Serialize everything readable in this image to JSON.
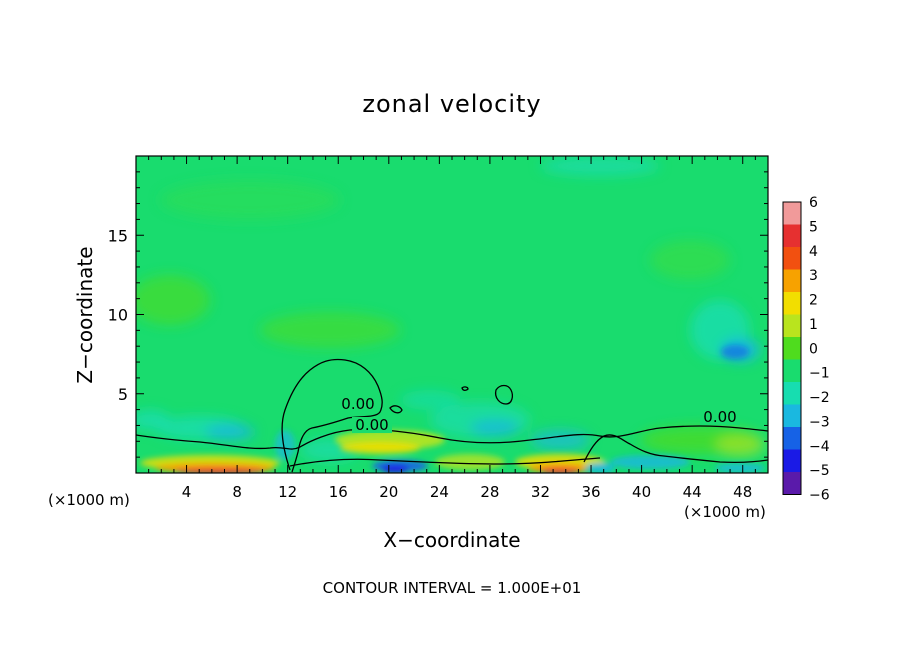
{
  "chart_data": {
    "type": "heatmap",
    "title": "zonal velocity",
    "xlabel": "X−coordinate",
    "ylabel": "Z−coordinate",
    "x_unit_left": "(×1000 m)",
    "x_unit_right": "(×1000 m)",
    "footer": "CONTOUR INTERVAL = 1.000E+01",
    "xlim": [
      0,
      50
    ],
    "ylim": [
      0,
      20
    ],
    "x_ticks": [
      4,
      8,
      12,
      16,
      20,
      24,
      28,
      32,
      36,
      40,
      44,
      48
    ],
    "y_ticks": [
      5,
      10,
      15
    ],
    "contour_level": "0.00",
    "contour_labels": [
      "0.00",
      "0.00",
      "0.00"
    ],
    "colorbar": {
      "ticks": [
        "6",
        "5",
        "4",
        "3",
        "2",
        "1",
        "0",
        "−1",
        "−2",
        "−3",
        "−4",
        "−5",
        "−6"
      ],
      "colors": [
        "#f19a9a",
        "#e63030",
        "#f25010",
        "#f7a200",
        "#f2de00",
        "#b9e41e",
        "#4fdc1e",
        "#19dc6e",
        "#17ddb0",
        "#1ab8e0",
        "#1662e6",
        "#1a1ae6",
        "#5a1aaa"
      ]
    },
    "background_color": "#19dc6e"
  }
}
